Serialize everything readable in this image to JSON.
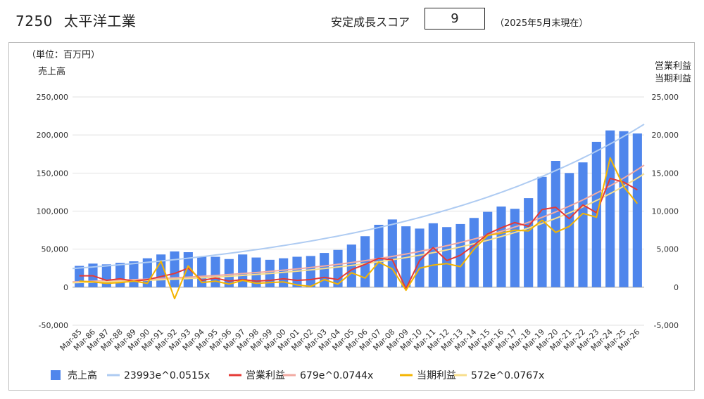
{
  "header": {
    "code": "7250",
    "name": "太平洋工業",
    "score_label": "安定成長スコア",
    "score_value": "9",
    "as_of": "（2025年5月末現在）"
  },
  "chart_data": {
    "type": "bar",
    "unit_label": "（単位：百万円）",
    "y_left_title": "売上高",
    "y_right_title_line1": "営業利益",
    "y_right_title_line2": "当期利益",
    "ylim_left": [
      -50000,
      250000
    ],
    "ylim_right": [
      -5000,
      25000
    ],
    "yticks_left": [
      "-50,000",
      "0",
      "50,000",
      "100,000",
      "150,000",
      "200,000",
      "250,000"
    ],
    "yticks_right": [
      "-5,000",
      "0",
      "5,000",
      "10,000",
      "15,000",
      "20,000",
      "25,000"
    ],
    "grid": true,
    "legend_position": "bottom",
    "categories": [
      "Mar-85",
      "Mar-86",
      "Mar-87",
      "Mar-88",
      "Mar-89",
      "Mar-90",
      "Mar-91",
      "Mar-92",
      "Mar-93",
      "Mar-94",
      "Mar-95",
      "Mar-96",
      "Mar-97",
      "Mar-98",
      "Mar-99",
      "Mar-00",
      "Mar-01",
      "Mar-02",
      "Mar-03",
      "Mar-04",
      "Mar-05",
      "Mar-06",
      "Mar-07",
      "Mar-08",
      "Mar-09",
      "Mar-10",
      "Mar-11",
      "Mar-12",
      "Mar-13",
      "Mar-14",
      "Mar-15",
      "Mar-16",
      "Mar-17",
      "Mar-18",
      "Mar-19",
      "Mar-20",
      "Mar-21",
      "Mar-22",
      "Mar-23",
      "Mar-24",
      "Mar-25",
      "Mar-26"
    ],
    "series": [
      {
        "name": "売上高",
        "type": "bar",
        "axis": "left",
        "color": "#4f86ec",
        "values": [
          28000,
          31000,
          30000,
          32000,
          34000,
          38000,
          43000,
          47000,
          46000,
          40000,
          40000,
          37000,
          43000,
          39000,
          36000,
          38000,
          40000,
          41000,
          45000,
          49000,
          56000,
          67000,
          82000,
          89000,
          80000,
          77000,
          84000,
          79000,
          83000,
          91000,
          99000,
          106000,
          103000,
          117000,
          145000,
          166000,
          150000,
          164000,
          191000,
          206000,
          205000,
          202000
        ]
      },
      {
        "name": "23993e^0.0515x",
        "type": "trend",
        "axis": "left",
        "color": "#aecbf2",
        "a": 23993,
        "b": 0.0515
      },
      {
        "name": "営業利益",
        "type": "line",
        "axis": "right",
        "color": "#e53935",
        "values": [
          1500,
          1500,
          900,
          1100,
          800,
          1000,
          1400,
          1800,
          2500,
          900,
          1200,
          800,
          1000,
          800,
          900,
          1100,
          900,
          1000,
          1300,
          1000,
          2300,
          3000,
          3800,
          3600,
          -200,
          3500,
          5200,
          3500,
          4200,
          5500,
          7000,
          7800,
          8500,
          8000,
          10200,
          10500,
          9000,
          10800,
          9800,
          14300,
          13800,
          12800
        ]
      },
      {
        "name": "679e^0.0744x",
        "type": "trend",
        "axis": "right",
        "color": "#f2aaa2",
        "a": 679,
        "b": 0.0744
      },
      {
        "name": "当期利益",
        "type": "line",
        "axis": "right",
        "color": "#f4b400",
        "values": [
          800,
          700,
          500,
          600,
          800,
          500,
          3400,
          -1500,
          2800,
          600,
          800,
          400,
          900,
          500,
          600,
          700,
          300,
          100,
          1000,
          400,
          1900,
          1200,
          3300,
          2400,
          -400,
          2500,
          2900,
          3100,
          2700,
          5000,
          6800,
          7100,
          7500,
          7400,
          8800,
          7200,
          8000,
          9700,
          9200,
          17000,
          13200,
          11000
        ]
      },
      {
        "name": "572e^0.0767x",
        "type": "trend",
        "axis": "right",
        "color": "#f7de8c",
        "a": 572,
        "b": 0.0767
      }
    ]
  }
}
